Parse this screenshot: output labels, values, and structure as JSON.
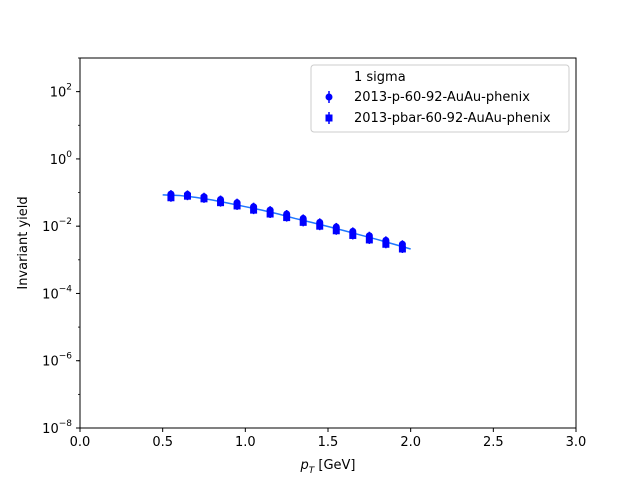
{
  "chart_data": {
    "type": "scatter",
    "title": "",
    "xlabel_main": "p",
    "xlabel_sub": "T",
    "xlabel_unit": " [GeV]",
    "ylabel": "Invariant yield",
    "xlim": [
      0.0,
      3.0
    ],
    "ylim_log10": [
      -8,
      3
    ],
    "y_scale": "log",
    "x_ticks": [
      {
        "value": 0.0,
        "label": "0.0"
      },
      {
        "value": 0.5,
        "label": "0.5"
      },
      {
        "value": 1.0,
        "label": "1.0"
      },
      {
        "value": 1.5,
        "label": "1.5"
      },
      {
        "value": 2.0,
        "label": "2.0"
      },
      {
        "value": 2.5,
        "label": "2.5"
      },
      {
        "value": 3.0,
        "label": "3.0"
      }
    ],
    "y_ticks": [
      {
        "exp": -8,
        "base": "10",
        "power": "−8"
      },
      {
        "exp": -6,
        "base": "10",
        "power": "−6"
      },
      {
        "exp": -4,
        "base": "10",
        "power": "−4"
      },
      {
        "exp": -2,
        "base": "10",
        "power": "−2"
      },
      {
        "exp": 0,
        "base": "10",
        "power": "0"
      },
      {
        "exp": 2,
        "base": "10",
        "power": "2"
      }
    ],
    "grid": false,
    "legend": {
      "placement": "top-right",
      "title": "1 sigma",
      "entries": [
        "2013-p-60-92-AuAu-phenix",
        "2013-pbar-60-92-AuAu-phenix"
      ]
    },
    "series": [
      {
        "name": "2013-p-60-92-AuAu-phenix",
        "marker": "circle",
        "color": "#0000ff",
        "x": [
          0.55,
          0.65,
          0.75,
          0.85,
          0.95,
          1.05,
          1.15,
          1.25,
          1.35,
          1.45,
          1.55,
          1.65,
          1.75,
          1.85,
          1.95
        ],
        "y": [
          0.09,
          0.088,
          0.075,
          0.062,
          0.05,
          0.038,
          0.03,
          0.023,
          0.017,
          0.013,
          0.0095,
          0.007,
          0.0052,
          0.0038,
          0.0029
        ]
      },
      {
        "name": "2013-pbar-60-92-AuAu-phenix",
        "marker": "square",
        "color": "#0000ff",
        "x": [
          0.55,
          0.65,
          0.75,
          0.85,
          0.95,
          1.05,
          1.15,
          1.25,
          1.35,
          1.45,
          1.55,
          1.65,
          1.75,
          1.85,
          1.95
        ],
        "y": [
          0.07,
          0.078,
          0.065,
          0.05,
          0.04,
          0.03,
          0.023,
          0.018,
          0.013,
          0.01,
          0.0073,
          0.0053,
          0.0039,
          0.0029,
          0.0021
        ]
      }
    ],
    "fit_line": {
      "color": "#1f77ff",
      "x": [
        0.5,
        0.6,
        0.7,
        0.8,
        0.9,
        1.0,
        1.1,
        1.2,
        1.3,
        1.4,
        1.5,
        1.6,
        1.7,
        1.8,
        1.9,
        2.0
      ],
      "y": [
        0.085,
        0.082,
        0.072,
        0.06,
        0.048,
        0.038,
        0.03,
        0.023,
        0.017,
        0.013,
        0.0098,
        0.0073,
        0.0054,
        0.004,
        0.0029,
        0.0021
      ]
    }
  }
}
